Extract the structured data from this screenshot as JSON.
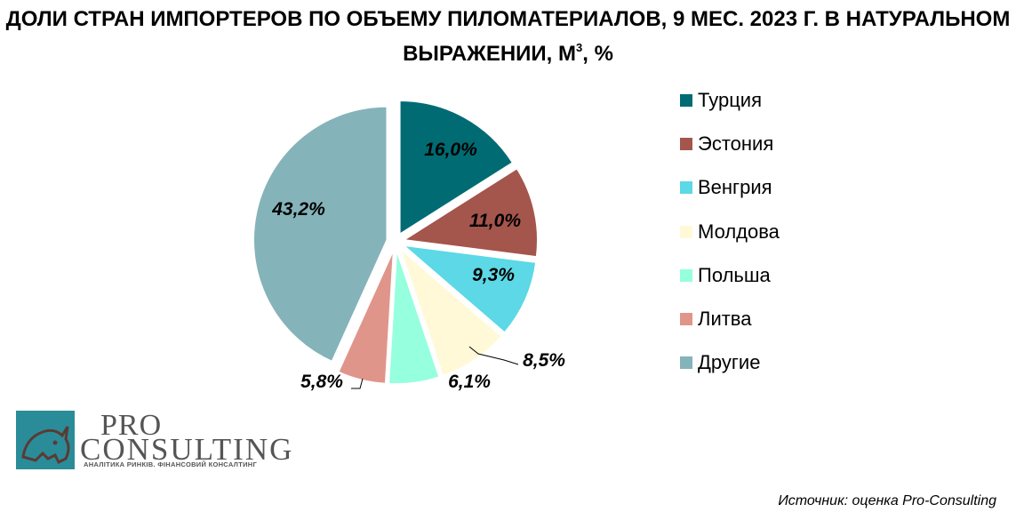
{
  "title_main": "ДОЛИ СТРАН ИМПОРТЕРОВ ПО ОБЪЕМУ ПИЛОМАТЕРИАЛОВ, 9 МЕС. 2023 Г. В НАТУРАЛЬНОМ ВЫРАЖЕНИИ, М",
  "title_sup": "3",
  "title_tail": ", %",
  "source": "Источник: оценка Pro-Consulting",
  "logo": {
    "pro": "PRO",
    "consulting": "CONSULTING",
    "tagline": "АНАЛІТИКА РИНКІВ. ФІНАНСОВИЙ КОНСАЛТИНГ"
  },
  "chart_data": {
    "type": "pie",
    "title": "ДОЛИ СТРАН ИМПОРТЕРОВ ПО ОБЪЕМУ ПИЛОМАТЕРИАЛОВ, 9 МЕС. 2023 Г. В НАТУРАЛЬНОМ ВЫРАЖЕНИИ, М3, %",
    "legend_position": "right",
    "slices": [
      {
        "name": "Турция",
        "value": 16.0,
        "label": "16,0%",
        "color": "#006B73"
      },
      {
        "name": "Эстония",
        "value": 11.0,
        "label": "11,0%",
        "color": "#A4554C"
      },
      {
        "name": "Венгрия",
        "value": 9.3,
        "label": "9,3%",
        "color": "#5CD8E6"
      },
      {
        "name": "Молдова",
        "value": 8.5,
        "label": "8,5%",
        "color": "#FFF9D7"
      },
      {
        "name": "Польша",
        "value": 6.1,
        "label": "6,1%",
        "color": "#96FFDD"
      },
      {
        "name": "Литва",
        "value": 5.8,
        "label": "5,8%",
        "color": "#E0958B"
      },
      {
        "name": "Другие",
        "value": 43.2,
        "label": "43,2%",
        "color": "#85B3BA"
      }
    ]
  }
}
